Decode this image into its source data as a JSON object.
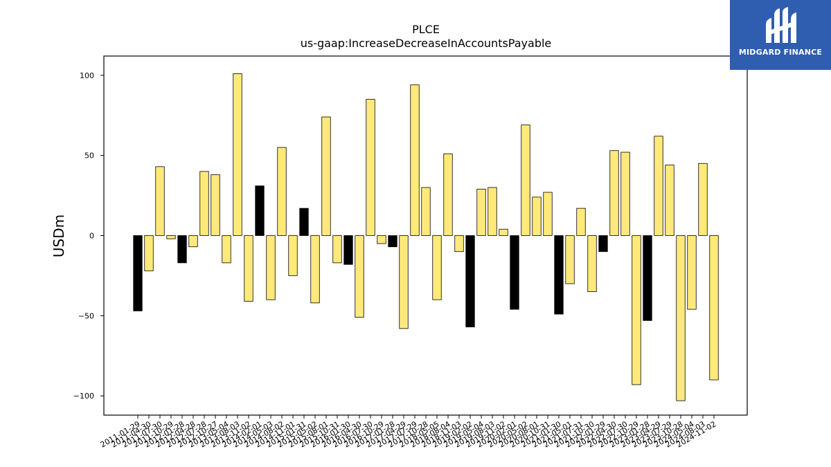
{
  "logo": {
    "text": "MIDGARD FINANCE"
  },
  "colors": {
    "positive_bar": "#ffe97a",
    "negative_bar": "#000000",
    "bar_outline": "#000000",
    "logo_bg": "#2f5db0"
  },
  "chart_data": {
    "type": "bar",
    "title": "PLCE",
    "subtitle": "us-gaap:IncreaseDecreaseInAccountsPayable",
    "xlabel": "",
    "ylabel": "USDm",
    "ylim": [
      -112,
      112
    ],
    "yticks": [
      -100,
      -50,
      0,
      50,
      100
    ],
    "grid": false,
    "categories": [
      "2011-01-29",
      "2011-04-30",
      "2011-07-30",
      "2011-10-29",
      "2012-01-28",
      "2012-04-28",
      "2012-07-28",
      "2012-10-27",
      "2013-05-04",
      "2013-08-03",
      "2013-11-02",
      "2014-02-01",
      "2014-05-03",
      "2014-08-02",
      "2014-11-01",
      "2015-01-31",
      "2015-05-02",
      "2015-08-01",
      "2015-10-31",
      "2016-01-30",
      "2016-04-30",
      "2016-07-30",
      "2016-10-29",
      "2017-01-28",
      "2017-04-29",
      "2017-07-29",
      "2017-10-28",
      "2018-05-05",
      "2018-08-04",
      "2018-11-03",
      "2019-02-02",
      "2019-05-04",
      "2019-08-03",
      "2019-11-02",
      "2020-02-01",
      "2020-05-02",
      "2020-08-01",
      "2020-10-31",
      "2021-01-30",
      "2021-05-01",
      "2021-07-31",
      "2021-10-30",
      "2022-01-29",
      "2022-04-30",
      "2022-07-30",
      "2022-10-29",
      "2023-01-28",
      "2023-04-29",
      "2023-07-29",
      "2023-10-28",
      "2024-05-04",
      "2024-08-03",
      "2024-11-02"
    ],
    "values": [
      -47,
      -22,
      43,
      -2,
      -17,
      -7,
      40,
      38,
      -17,
      101,
      -41,
      31,
      -40,
      55,
      -25,
      17,
      -42,
      74,
      -17,
      -18,
      -51,
      85,
      -5,
      -7,
      -58,
      94,
      30,
      -40,
      51,
      -10,
      -57,
      29,
      30,
      4,
      -46,
      69,
      24,
      27,
      -49,
      -30,
      17,
      -35,
      -10,
      53,
      52,
      -93,
      -53,
      62,
      44,
      -103,
      -46,
      45,
      -90
    ],
    "bar_color_mode": [
      1,
      0,
      0,
      0,
      1,
      0,
      0,
      0,
      0,
      0,
      0,
      1,
      0,
      0,
      0,
      1,
      0,
      0,
      0,
      1,
      0,
      0,
      0,
      1,
      0,
      0,
      0,
      0,
      0,
      0,
      1,
      0,
      0,
      0,
      1,
      0,
      0,
      0,
      1,
      0,
      0,
      0,
      1,
      0,
      0,
      0,
      1,
      0,
      0,
      0,
      0,
      0,
      0
    ]
  }
}
